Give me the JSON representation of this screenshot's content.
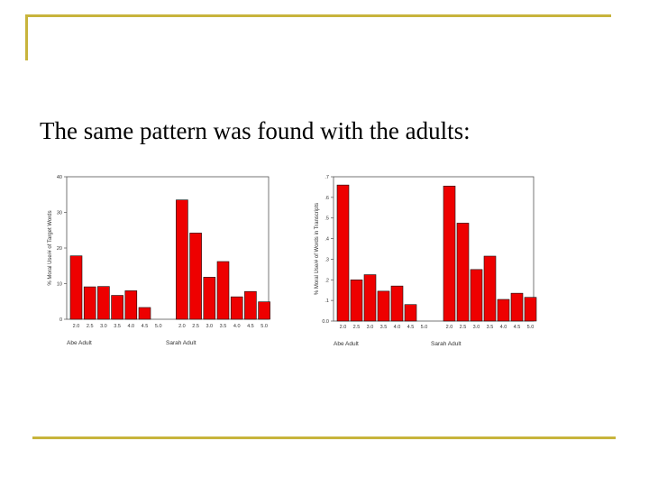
{
  "slide": {
    "title": "The same pattern was found with the adults:"
  },
  "colors": {
    "accent": "#c8b43c",
    "bar_fill": "#ee0000",
    "bar_stroke": "#111111"
  },
  "chart_data": [
    {
      "type": "bar",
      "ylabel": "% Moral Use/# of Target Words",
      "ylim": [
        0,
        40
      ],
      "yticks": [
        "0",
        "10",
        "20",
        "30",
        "40"
      ],
      "ytick_values": [
        0,
        10,
        20,
        30,
        40
      ],
      "groups": [
        {
          "name": "Abe  Adult",
          "categories": [
            "2.0",
            "2.5",
            "3.0",
            "3.5",
            "4.0",
            "4.5",
            "5.0"
          ],
          "values": [
            17.8,
            9.1,
            9.2,
            6.7,
            8.0,
            3.3,
            0
          ]
        },
        {
          "name": "Sarah Adult",
          "categories": [
            "2.0",
            "2.5",
            "3.0",
            "3.5",
            "4.0",
            "4.5",
            "5.0"
          ],
          "values": [
            33.5,
            24.2,
            11.8,
            16.2,
            6.3,
            7.8,
            4.9
          ]
        }
      ],
      "grid": false
    },
    {
      "type": "bar",
      "ylabel": "% Moral Use/# of Words in Transcripts",
      "ylim": [
        0,
        0.7
      ],
      "yticks": [
        "0.0",
        ".1",
        ".2",
        ".3",
        ".4",
        ".5",
        ".6",
        ".7"
      ],
      "ytick_values": [
        0,
        0.1,
        0.2,
        0.3,
        0.4,
        0.5,
        0.6,
        0.7
      ],
      "groups": [
        {
          "name": "Abe  Adult",
          "categories": [
            "2.0",
            "2.5",
            "3.0",
            "3.5",
            "4.0",
            "4.5",
            "5.0"
          ],
          "values": [
            0.66,
            0.2,
            0.225,
            0.145,
            0.17,
            0.08,
            0
          ]
        },
        {
          "name": "Sarah Adult",
          "categories": [
            "2.0",
            "2.5",
            "3.0",
            "3.5",
            "4.0",
            "4.5",
            "5.0"
          ],
          "values": [
            0.655,
            0.475,
            0.25,
            0.315,
            0.105,
            0.135,
            0.115
          ]
        }
      ],
      "grid": false
    }
  ]
}
